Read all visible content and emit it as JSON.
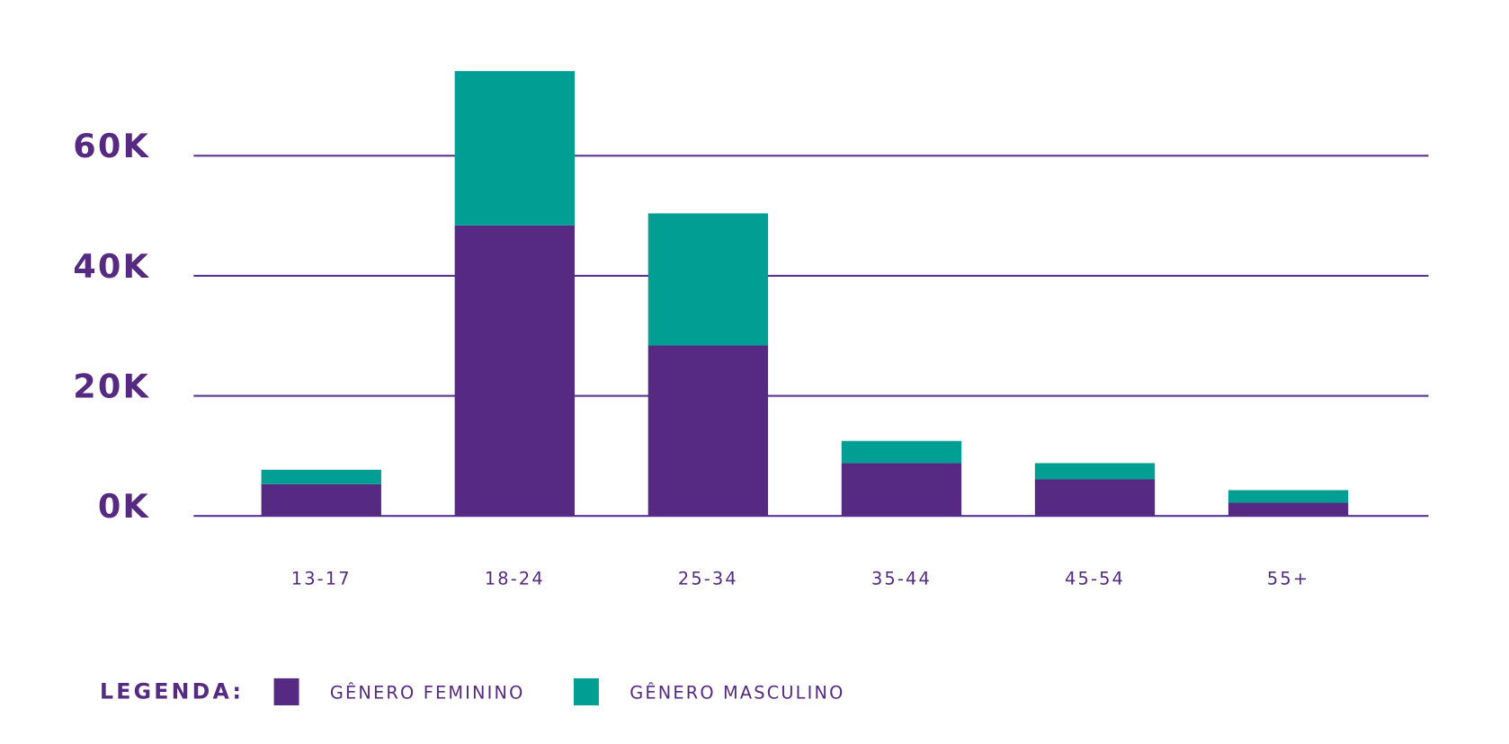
{
  "chart_data": {
    "type": "stacked_bar",
    "categories": [
      "13-17",
      "18-24",
      "25-34",
      "35-44",
      "45-54",
      "55+"
    ],
    "series": [
      {
        "name": "GÊNERO FEMININO",
        "color": "#562a82",
        "values": [
          5300,
          48400,
          28400,
          8800,
          6100,
          2200
        ]
      },
      {
        "name": "GÊNERO MASCULINO",
        "color": "#009e93",
        "values": [
          2400,
          25700,
          22000,
          3700,
          2700,
          2100
        ]
      }
    ],
    "ylim": [
      0,
      75000
    ],
    "yticks": [
      {
        "value": 0,
        "label": "0K"
      },
      {
        "value": 20000,
        "label": "20K"
      },
      {
        "value": 40000,
        "label": "40K"
      },
      {
        "value": 60000,
        "label": "60K"
      }
    ],
    "grid": true,
    "legend_title": "LEGENDA:",
    "legend_position": "bottom-left"
  }
}
